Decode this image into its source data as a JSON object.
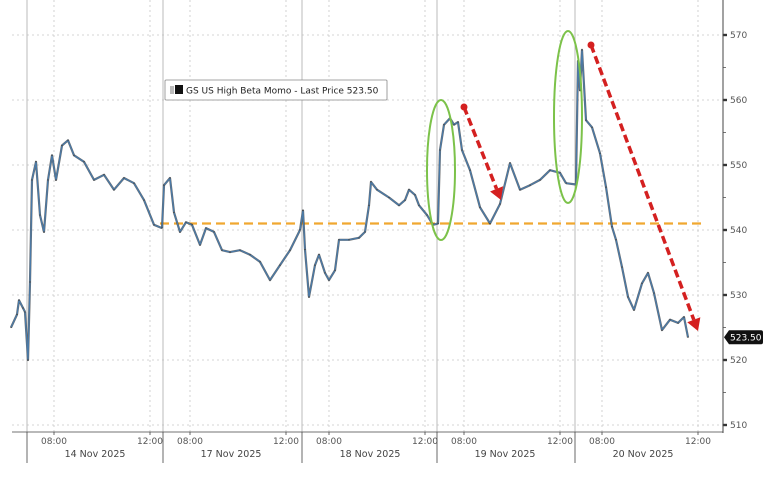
{
  "chart_data": {
    "type": "line",
    "legend": {
      "label": "GS US High Beta Momo - Last Price 523.50",
      "placement": "top-left"
    },
    "last_price_label": "523.50",
    "y_axis": {
      "side": "right",
      "range": [
        510,
        570
      ],
      "ticks": [
        510,
        520,
        530,
        540,
        550,
        560,
        570
      ],
      "tick_labels": [
        "510",
        "520",
        "530",
        "540",
        "550",
        "560",
        "570"
      ]
    },
    "x_axis": {
      "days": [
        "14 Nov 2025",
        "17 Nov 2025",
        "18 Nov 2025",
        "19 Nov 2025",
        "20 Nov 2025"
      ],
      "hour_labels": [
        "08:00",
        "12:00"
      ]
    },
    "grid": true,
    "colors": {
      "line": "#4a7aa8",
      "line_dark": "#3a3a3a",
      "reference": "#f0a830",
      "highlight": "#7cc24a",
      "arrow": "#d42020",
      "last_box": "#111111"
    },
    "reference_line": {
      "value": 541,
      "style": "dashed"
    },
    "series": [
      {
        "points": [
          {
            "d": "13 Nov",
            "t": "11:55",
            "p": 525.0
          },
          {
            "d": "13 Nov",
            "t": "12:10",
            "p": 527.0
          },
          {
            "d": "13 Nov",
            "t": "12:15",
            "p": 529.2
          },
          {
            "d": "13 Nov",
            "t": "12:25",
            "p": 528.0
          },
          {
            "d": "13 Nov",
            "t": "12:30",
            "p": 527.4
          },
          {
            "d": "14 Nov",
            "t": "06:55",
            "p": 520.0
          },
          {
            "d": "14 Nov",
            "t": "07:00",
            "p": 532.0
          },
          {
            "d": "14 Nov",
            "t": "07:05",
            "p": 547.7
          },
          {
            "d": "14 Nov",
            "t": "07:15",
            "p": 550.5
          },
          {
            "d": "14 Nov",
            "t": "07:25",
            "p": 542.3
          },
          {
            "d": "14 Nov",
            "t": "07:35",
            "p": 539.7
          },
          {
            "d": "14 Nov",
            "t": "07:45",
            "p": 547.7
          },
          {
            "d": "14 Nov",
            "t": "07:55",
            "p": 551.5
          },
          {
            "d": "14 Nov",
            "t": "08:05",
            "p": 547.7
          },
          {
            "d": "14 Nov",
            "t": "08:20",
            "p": 553.0
          },
          {
            "d": "14 Nov",
            "t": "08:35",
            "p": 553.8
          },
          {
            "d": "14 Nov",
            "t": "08:50",
            "p": 551.5
          },
          {
            "d": "14 Nov",
            "t": "09:15",
            "p": 550.5
          },
          {
            "d": "14 Nov",
            "t": "09:40",
            "p": 547.7
          },
          {
            "d": "14 Nov",
            "t": "10:05",
            "p": 548.5
          },
          {
            "d": "14 Nov",
            "t": "10:30",
            "p": 546.2
          },
          {
            "d": "14 Nov",
            "t": "10:55",
            "p": 548.0
          },
          {
            "d": "14 Nov",
            "t": "11:20",
            "p": 547.2
          },
          {
            "d": "14 Nov",
            "t": "11:45",
            "p": 544.6
          },
          {
            "d": "14 Nov",
            "t": "12:10",
            "p": 540.8
          },
          {
            "d": "14 Nov",
            "t": "12:30",
            "p": 540.3
          },
          {
            "d": "17 Nov",
            "t": "06:55",
            "p": 546.9
          },
          {
            "d": "17 Nov",
            "t": "07:10",
            "p": 548.0
          },
          {
            "d": "17 Nov",
            "t": "07:20",
            "p": 542.7
          },
          {
            "d": "17 Nov",
            "t": "07:35",
            "p": 539.7
          },
          {
            "d": "17 Nov",
            "t": "07:50",
            "p": 541.2
          },
          {
            "d": "17 Nov",
            "t": "08:05",
            "p": 540.8
          },
          {
            "d": "17 Nov",
            "t": "08:25",
            "p": 537.7
          },
          {
            "d": "17 Nov",
            "t": "08:40",
            "p": 540.3
          },
          {
            "d": "17 Nov",
            "t": "09:00",
            "p": 539.7
          },
          {
            "d": "17 Nov",
            "t": "09:20",
            "p": 536.9
          },
          {
            "d": "17 Nov",
            "t": "09:40",
            "p": 536.6
          },
          {
            "d": "17 Nov",
            "t": "10:05",
            "p": 536.9
          },
          {
            "d": "17 Nov",
            "t": "10:30",
            "p": 536.2
          },
          {
            "d": "17 Nov",
            "t": "10:55",
            "p": 535.1
          },
          {
            "d": "17 Nov",
            "t": "11:20",
            "p": 532.3
          },
          {
            "d": "17 Nov",
            "t": "11:45",
            "p": 534.6
          },
          {
            "d": "17 Nov",
            "t": "12:10",
            "p": 536.9
          },
          {
            "d": "17 Nov",
            "t": "12:35",
            "p": 540.0
          },
          {
            "d": "18 Nov",
            "t": "06:55",
            "p": 543.0
          },
          {
            "d": "18 Nov",
            "t": "07:00",
            "p": 537.0
          },
          {
            "d": "18 Nov",
            "t": "07:10",
            "p": 529.7
          },
          {
            "d": "18 Nov",
            "t": "07:25",
            "p": 534.6
          },
          {
            "d": "18 Nov",
            "t": "07:35",
            "p": 536.2
          },
          {
            "d": "18 Nov",
            "t": "07:50",
            "p": 533.4
          },
          {
            "d": "18 Nov",
            "t": "08:00",
            "p": 532.3
          },
          {
            "d": "18 Nov",
            "t": "08:15",
            "p": 533.8
          },
          {
            "d": "18 Nov",
            "t": "08:25",
            "p": 538.5
          },
          {
            "d": "18 Nov",
            "t": "08:50",
            "p": 538.5
          },
          {
            "d": "18 Nov",
            "t": "09:15",
            "p": 538.8
          },
          {
            "d": "18 Nov",
            "t": "09:30",
            "p": 539.7
          },
          {
            "d": "18 Nov",
            "t": "09:40",
            "p": 543.8
          },
          {
            "d": "18 Nov",
            "t": "09:45",
            "p": 547.4
          },
          {
            "d": "18 Nov",
            "t": "10:00",
            "p": 546.2
          },
          {
            "d": "18 Nov",
            "t": "10:30",
            "p": 545.0
          },
          {
            "d": "18 Nov",
            "t": "10:55",
            "p": 543.8
          },
          {
            "d": "18 Nov",
            "t": "11:10",
            "p": 544.6
          },
          {
            "d": "18 Nov",
            "t": "11:20",
            "p": 546.2
          },
          {
            "d": "18 Nov",
            "t": "11:35",
            "p": 545.4
          },
          {
            "d": "18 Nov",
            "t": "11:45",
            "p": 543.8
          },
          {
            "d": "18 Nov",
            "t": "12:05",
            "p": 542.3
          },
          {
            "d": "18 Nov",
            "t": "12:20",
            "p": 540.8
          },
          {
            "d": "19 Nov",
            "t": "06:55",
            "p": 541.0
          },
          {
            "d": "19 Nov",
            "t": "07:00",
            "p": 552.3
          },
          {
            "d": "19 Nov",
            "t": "07:10",
            "p": 556.2
          },
          {
            "d": "19 Nov",
            "t": "07:25",
            "p": 557.2
          },
          {
            "d": "19 Nov",
            "t": "07:35",
            "p": 556.2
          },
          {
            "d": "19 Nov",
            "t": "07:45",
            "p": 556.6
          },
          {
            "d": "19 Nov",
            "t": "07:55",
            "p": 552.3
          },
          {
            "d": "19 Nov",
            "t": "08:15",
            "p": 549.2
          },
          {
            "d": "19 Nov",
            "t": "08:40",
            "p": 543.5
          },
          {
            "d": "19 Nov",
            "t": "09:05",
            "p": 541.0
          },
          {
            "d": "19 Nov",
            "t": "09:30",
            "p": 544.0
          },
          {
            "d": "19 Nov",
            "t": "09:55",
            "p": 550.3
          },
          {
            "d": "19 Nov",
            "t": "10:20",
            "p": 546.2
          },
          {
            "d": "19 Nov",
            "t": "10:45",
            "p": 546.9
          },
          {
            "d": "19 Nov",
            "t": "11:10",
            "p": 547.7
          },
          {
            "d": "19 Nov",
            "t": "11:35",
            "p": 549.2
          },
          {
            "d": "19 Nov",
            "t": "12:00",
            "p": 548.8
          },
          {
            "d": "19 Nov",
            "t": "12:15",
            "p": 547.2
          },
          {
            "d": "20 Nov",
            "t": "06:55",
            "p": 547.0
          },
          {
            "d": "20 Nov",
            "t": "07:00",
            "p": 566.0
          },
          {
            "d": "20 Nov",
            "t": "07:05",
            "p": 561.5
          },
          {
            "d": "20 Nov",
            "t": "07:10",
            "p": 567.7
          },
          {
            "d": "20 Nov",
            "t": "07:20",
            "p": 556.9
          },
          {
            "d": "20 Nov",
            "t": "07:35",
            "p": 555.8
          },
          {
            "d": "20 Nov",
            "t": "07:55",
            "p": 551.8
          },
          {
            "d": "20 Nov",
            "t": "08:10",
            "p": 546.6
          },
          {
            "d": "20 Nov",
            "t": "08:25",
            "p": 540.5
          },
          {
            "d": "20 Nov",
            "t": "08:35",
            "p": 538.5
          },
          {
            "d": "20 Nov",
            "t": "08:50",
            "p": 534.3
          },
          {
            "d": "20 Nov",
            "t": "09:05",
            "p": 529.7
          },
          {
            "d": "20 Nov",
            "t": "09:20",
            "p": 527.7
          },
          {
            "d": "20 Nov",
            "t": "09:40",
            "p": 531.8
          },
          {
            "d": "20 Nov",
            "t": "09:55",
            "p": 533.4
          },
          {
            "d": "20 Nov",
            "t": "10:10",
            "p": 530.3
          },
          {
            "d": "20 Nov",
            "t": "10:30",
            "p": 524.6
          },
          {
            "d": "20 Nov",
            "t": "10:50",
            "p": 526.2
          },
          {
            "d": "20 Nov",
            "t": "11:10",
            "p": 525.7
          },
          {
            "d": "20 Nov",
            "t": "11:25",
            "p": 526.6
          },
          {
            "d": "20 Nov",
            "t": "11:35",
            "p": 523.5
          }
        ]
      }
    ]
  }
}
